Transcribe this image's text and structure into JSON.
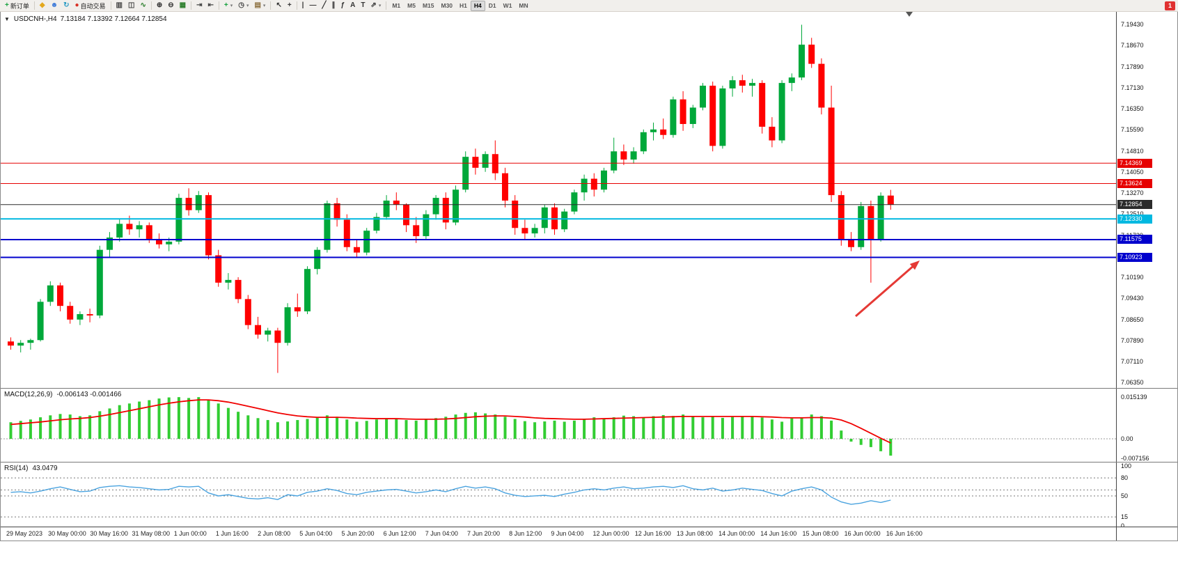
{
  "icons": {
    "collapse_triangle": "▼"
  },
  "toolbar": {
    "new_order_label": "新订单",
    "autotrading_label": "自动交易",
    "notification_badge": "1",
    "timeframes": [
      "M1",
      "M5",
      "M15",
      "M30",
      "H1",
      "H4",
      "D1",
      "W1",
      "MN"
    ],
    "active_timeframe": "H4",
    "groups": [
      {
        "items": [
          {
            "name": "new-order-button",
            "glyph": "+",
            "glyph_color": "#14a03c",
            "label": "新订单"
          }
        ]
      },
      {
        "items": [
          {
            "name": "alert-icon",
            "glyph": "◆",
            "glyph_color": "#e3a81e"
          },
          {
            "name": "market-watch-icon",
            "glyph": "☻",
            "glyph_color": "#3b78d8"
          },
          {
            "name": "refresh-icon",
            "glyph": "↻",
            "glyph_color": "#2a9bc4"
          },
          {
            "name": "autotrading-button",
            "glyph": "●",
            "glyph_color": "#d93025",
            "label": "自动交易"
          }
        ]
      },
      {
        "items": [
          {
            "name": "bar-chart-icon",
            "glyph": "▥",
            "glyph_color": "#444"
          },
          {
            "name": "candlestick-chart-icon",
            "glyph": "◫",
            "glyph_color": "#444"
          },
          {
            "name": "line-chart-icon",
            "glyph": "∿",
            "glyph_color": "#2a7d2a"
          }
        ]
      },
      {
        "items": [
          {
            "name": "zoom-in-icon",
            "glyph": "⊕",
            "glyph_color": "#333"
          },
          {
            "name": "zoom-out-icon",
            "glyph": "⊖",
            "glyph_color": "#333"
          },
          {
            "name": "tile-windows-icon",
            "glyph": "▦",
            "glyph_color": "#2a7d2a"
          }
        ]
      },
      {
        "items": [
          {
            "name": "auto-scroll-icon",
            "glyph": "⇥",
            "glyph_color": "#444"
          },
          {
            "name": "chart-shift-icon",
            "glyph": "⇤",
            "glyph_color": "#444"
          }
        ]
      },
      {
        "items": [
          {
            "name": "indicators-button",
            "glyph": "+",
            "glyph_color": "#14a03c",
            "caret": true
          },
          {
            "name": "periods-button",
            "glyph": "◷",
            "glyph_color": "#444",
            "caret": true
          },
          {
            "name": "templates-button",
            "glyph": "▤",
            "glyph_color": "#8a6d3b",
            "caret": true
          }
        ]
      },
      {
        "items": [
          {
            "name": "cursor-icon",
            "glyph": "↖",
            "glyph_color": "#333"
          },
          {
            "name": "crosshair-icon",
            "glyph": "+",
            "glyph_color": "#333"
          }
        ]
      },
      {
        "items": [
          {
            "name": "vertical-line-icon",
            "glyph": "|",
            "glyph_color": "#333"
          },
          {
            "name": "horizontal-line-icon",
            "glyph": "—",
            "glyph_color": "#333"
          },
          {
            "name": "trendline-icon",
            "glyph": "╱",
            "glyph_color": "#333"
          },
          {
            "name": "channel-icon",
            "glyph": "∥",
            "glyph_color": "#333"
          },
          {
            "name": "fibonacci-icon",
            "glyph": "ƒ",
            "glyph_color": "#333"
          },
          {
            "name": "text-tool-icon",
            "glyph": "A",
            "glyph_color": "#333"
          },
          {
            "name": "label-tool-icon",
            "glyph": "T",
            "glyph_color": "#333"
          },
          {
            "name": "arrows-tool-icon",
            "glyph": "⇗",
            "glyph_color": "#333",
            "caret": true
          }
        ]
      }
    ]
  },
  "chart_data": [
    {
      "type": "candlestick",
      "symbol": "USDCNH-",
      "timeframe": "H4",
      "title": "USDCNH-,H4",
      "ohlc_display": "7.13184 7.13392 7.12664 7.12854",
      "ylim": [
        7.0615,
        7.199
      ],
      "up_color": "#00a83a",
      "down_color": "#ff0000",
      "y_axis_labels": [
        "7.19430",
        "7.18670",
        "7.17890",
        "7.17130",
        "7.16350",
        "7.15590",
        "7.14810",
        "7.14050",
        "7.13270",
        "7.12510",
        "7.11730",
        "7.10950",
        "7.10190",
        "7.09430",
        "7.08650",
        "7.07890",
        "7.07110",
        "7.06350"
      ],
      "x_axis_labels": [
        "29 May 2023",
        "30 May 00:00",
        "30 May 16:00",
        "31 May 08:00",
        "1 Jun 00:00",
        "1 Jun 16:00",
        "2 Jun 08:00",
        "5 Jun 04:00",
        "5 Jun 20:00",
        "6 Jun 12:00",
        "7 Jun 04:00",
        "7 Jun 20:00",
        "8 Jun 12:00",
        "9 Jun 04:00",
        "12 Jun 00:00",
        "12 Jun 16:00",
        "13 Jun 08:00",
        "14 Jun 00:00",
        "14 Jun 16:00",
        "15 Jun 08:00",
        "16 Jun 00:00",
        "16 Jun 16:00"
      ],
      "candles": [
        [
          7.0785,
          7.08,
          7.0755,
          7.077
        ],
        [
          7.077,
          7.079,
          7.0745,
          7.078
        ],
        [
          7.078,
          7.0795,
          7.0755,
          7.079
        ],
        [
          7.079,
          7.094,
          7.0785,
          7.093
        ],
        [
          7.093,
          7.1005,
          7.0915,
          7.099
        ],
        [
          7.099,
          7.1,
          7.0895,
          7.0915
        ],
        [
          7.0915,
          7.093,
          7.085,
          7.0865
        ],
        [
          7.0865,
          7.0895,
          7.0845,
          7.0885
        ],
        [
          7.0885,
          7.0905,
          7.0855,
          7.088
        ],
        [
          7.088,
          7.1135,
          7.087,
          7.112
        ],
        [
          7.112,
          7.1185,
          7.1095,
          7.1165
        ],
        [
          7.1165,
          7.1235,
          7.115,
          7.1215
        ],
        [
          7.1215,
          7.1245,
          7.1175,
          7.1195
        ],
        [
          7.1195,
          7.1225,
          7.1165,
          7.121
        ],
        [
          7.121,
          7.122,
          7.1145,
          7.116
        ],
        [
          7.116,
          7.118,
          7.1125,
          7.114
        ],
        [
          7.114,
          7.1165,
          7.1115,
          7.115
        ],
        [
          7.115,
          7.1325,
          7.114,
          7.131
        ],
        [
          7.131,
          7.1345,
          7.1245,
          7.1265
        ],
        [
          7.1265,
          7.1335,
          7.1255,
          7.132
        ],
        [
          7.132,
          7.133,
          7.1085,
          7.11
        ],
        [
          7.11,
          7.112,
          7.0985,
          7.1
        ],
        [
          7.1,
          7.1035,
          7.0975,
          7.101
        ],
        [
          7.101,
          7.102,
          7.0925,
          7.094
        ],
        [
          7.094,
          7.0955,
          7.083,
          7.0845
        ],
        [
          7.0845,
          7.0875,
          7.0795,
          7.081
        ],
        [
          7.081,
          7.0835,
          7.0785,
          7.0825
        ],
        [
          7.0825,
          7.0835,
          7.067,
          7.078
        ],
        [
          7.078,
          7.0925,
          7.077,
          7.091
        ],
        [
          7.091,
          7.096,
          7.0875,
          7.0895
        ],
        [
          7.0895,
          7.106,
          7.0885,
          7.105
        ],
        [
          7.105,
          7.113,
          7.103,
          7.112
        ],
        [
          7.112,
          7.13,
          7.111,
          7.129
        ],
        [
          7.129,
          7.131,
          7.1205,
          7.123
        ],
        [
          7.123,
          7.125,
          7.1115,
          7.113
        ],
        [
          7.113,
          7.116,
          7.1095,
          7.111
        ],
        [
          7.111,
          7.12,
          7.11,
          7.119
        ],
        [
          7.119,
          7.1255,
          7.118,
          7.124
        ],
        [
          7.124,
          7.132,
          7.123,
          7.13
        ],
        [
          7.13,
          7.133,
          7.1265,
          7.1285
        ],
        [
          7.1285,
          7.129,
          7.1185,
          7.121
        ],
        [
          7.121,
          7.124,
          7.1145,
          7.117
        ],
        [
          7.117,
          7.1265,
          7.116,
          7.125
        ],
        [
          7.125,
          7.132,
          7.123,
          7.131
        ],
        [
          7.131,
          7.133,
          7.1195,
          7.122
        ],
        [
          7.122,
          7.1355,
          7.121,
          7.134
        ],
        [
          7.134,
          7.148,
          7.133,
          7.146
        ],
        [
          7.146,
          7.149,
          7.1395,
          7.142
        ],
        [
          7.142,
          7.148,
          7.1405,
          7.147
        ],
        [
          7.147,
          7.152,
          7.1375,
          7.14
        ],
        [
          7.14,
          7.142,
          7.1275,
          7.13
        ],
        [
          7.13,
          7.132,
          7.1175,
          7.12
        ],
        [
          7.12,
          7.123,
          7.1155,
          7.118
        ],
        [
          7.118,
          7.1215,
          7.1165,
          7.12
        ],
        [
          7.12,
          7.1285,
          7.118,
          7.1275
        ],
        [
          7.1275,
          7.129,
          7.1175,
          7.1195
        ],
        [
          7.1195,
          7.127,
          7.1185,
          7.126
        ],
        [
          7.126,
          7.134,
          7.125,
          7.133
        ],
        [
          7.133,
          7.1395,
          7.13,
          7.138
        ],
        [
          7.138,
          7.14,
          7.1315,
          7.134
        ],
        [
          7.134,
          7.142,
          7.133,
          7.141
        ],
        [
          7.141,
          7.153,
          7.14,
          7.148
        ],
        [
          7.148,
          7.1505,
          7.143,
          7.145
        ],
        [
          7.145,
          7.1495,
          7.1435,
          7.148
        ],
        [
          7.148,
          7.156,
          7.147,
          7.155
        ],
        [
          7.155,
          7.1585,
          7.152,
          7.156
        ],
        [
          7.156,
          7.16,
          7.1525,
          7.154
        ],
        [
          7.154,
          7.168,
          7.153,
          7.167
        ],
        [
          7.167,
          7.17,
          7.1555,
          7.158
        ],
        [
          7.158,
          7.165,
          7.1565,
          7.164
        ],
        [
          7.164,
          7.173,
          7.163,
          7.172
        ],
        [
          7.172,
          7.1735,
          7.148,
          7.15
        ],
        [
          7.15,
          7.172,
          7.149,
          7.171
        ],
        [
          7.171,
          7.1755,
          7.168,
          7.174
        ],
        [
          7.174,
          7.176,
          7.1695,
          7.172
        ],
        [
          7.172,
          7.1745,
          7.168,
          7.173
        ],
        [
          7.173,
          7.174,
          7.1545,
          7.157
        ],
        [
          7.157,
          7.1605,
          7.1495,
          7.152
        ],
        [
          7.152,
          7.174,
          7.151,
          7.173
        ],
        [
          7.173,
          7.1765,
          7.17,
          7.175
        ],
        [
          7.175,
          7.1943,
          7.174,
          7.187
        ],
        [
          7.187,
          7.1895,
          7.1785,
          7.18
        ],
        [
          7.18,
          7.182,
          7.1615,
          7.164
        ],
        [
          7.164,
          7.172,
          7.1295,
          7.132
        ],
        [
          7.132,
          7.1335,
          7.1135,
          7.116
        ],
        [
          7.116,
          7.1185,
          7.1115,
          7.113
        ],
        [
          7.113,
          7.1295,
          7.112,
          7.128
        ],
        [
          7.128,
          7.13,
          7.1,
          7.116
        ],
        [
          7.116,
          7.133,
          7.115,
          7.1318
        ],
        [
          7.13184,
          7.13392,
          7.12664,
          7.12854
        ]
      ],
      "horizontal_lines": [
        {
          "price": 7.14369,
          "label": "7.14369",
          "color": "#e60000",
          "width": 1
        },
        {
          "price": 7.13624,
          "label": "7.13624",
          "color": "#e60000",
          "width": 1
        },
        {
          "price": 7.12854,
          "label": "7.12854",
          "color": "#2b2b2b",
          "width": 1
        },
        {
          "price": 7.1233,
          "label": "7.12330",
          "color": "#00b8e0",
          "width": 2
        },
        {
          "price": 7.11575,
          "label": "7.11575",
          "color": "#0000cd",
          "width": 2
        },
        {
          "price": 7.10923,
          "label": "7.10923",
          "color": "#0000cd",
          "width": 2
        }
      ],
      "annotation_arrow": {
        "from": [
          1228,
          437
        ],
        "to": [
          1320,
          357
        ],
        "color": "#e53935"
      }
    },
    {
      "type": "bar",
      "name": "MACD(12,26,9)",
      "values_display": "-0.006143 -0.001466",
      "ylim": [
        -0.00833,
        0.01817
      ],
      "bar_color": "#32cd32",
      "signal_color": "#f00000",
      "y_axis_labels": [
        "0.015139",
        "0.00",
        "-0.007156"
      ],
      "y_axis_values": [
        0.015139,
        0,
        -0.007156
      ],
      "histogram": [
        0.006,
        0.0065,
        0.007,
        0.0078,
        0.0085,
        0.009,
        0.0088,
        0.0082,
        0.0085,
        0.01,
        0.011,
        0.0122,
        0.0128,
        0.0135,
        0.014,
        0.0146,
        0.015,
        0.0151,
        0.0148,
        0.0151,
        0.0142,
        0.0128,
        0.0112,
        0.0098,
        0.0085,
        0.0075,
        0.0068,
        0.006,
        0.0063,
        0.0068,
        0.0072,
        0.0078,
        0.0085,
        0.008,
        0.007,
        0.0062,
        0.0065,
        0.007,
        0.0075,
        0.0074,
        0.0068,
        0.0066,
        0.007,
        0.0075,
        0.008,
        0.0088,
        0.0094,
        0.0096,
        0.0092,
        0.0088,
        0.008,
        0.0072,
        0.0064,
        0.006,
        0.0063,
        0.0066,
        0.0062,
        0.0066,
        0.0072,
        0.0078,
        0.0074,
        0.0078,
        0.0084,
        0.0082,
        0.0078,
        0.0082,
        0.0086,
        0.0083,
        0.0088,
        0.0083,
        0.0078,
        0.0082,
        0.0076,
        0.0079,
        0.0083,
        0.008,
        0.0077,
        0.007,
        0.0062,
        0.0074,
        0.0078,
        0.0088,
        0.0082,
        0.0066,
        0.003,
        -0.001,
        -0.0022,
        -0.003,
        -0.0045,
        -0.0061
      ],
      "signal": [
        0.0052,
        0.0055,
        0.0058,
        0.0061,
        0.0065,
        0.0069,
        0.0072,
        0.0074,
        0.0077,
        0.0082,
        0.0088,
        0.0095,
        0.0102,
        0.0109,
        0.0116,
        0.0123,
        0.0129,
        0.0134,
        0.0138,
        0.0141,
        0.0141,
        0.0138,
        0.0133,
        0.0126,
        0.0118,
        0.011,
        0.0102,
        0.0094,
        0.0088,
        0.0083,
        0.008,
        0.0078,
        0.0078,
        0.0078,
        0.0077,
        0.0075,
        0.0074,
        0.0073,
        0.0073,
        0.0073,
        0.0072,
        0.0071,
        0.0071,
        0.0071,
        0.0072,
        0.0074,
        0.0077,
        0.008,
        0.0082,
        0.0083,
        0.0083,
        0.0081,
        0.0079,
        0.0076,
        0.0074,
        0.0073,
        0.0072,
        0.0071,
        0.0071,
        0.0072,
        0.0073,
        0.0074,
        0.0075,
        0.0076,
        0.0077,
        0.0078,
        0.0079,
        0.008,
        0.0081,
        0.0081,
        0.0081,
        0.0081,
        0.0081,
        0.0081,
        0.0081,
        0.0081,
        0.008,
        0.0079,
        0.0077,
        0.0076,
        0.0076,
        0.0077,
        0.0077,
        0.0075,
        0.0068,
        0.0055,
        0.0038,
        0.002,
        0.0002,
        -0.0015
      ]
    },
    {
      "type": "line",
      "name": "RSI(14)",
      "value_display": "43.0479",
      "ylim": [
        -1.2,
        105.8
      ],
      "line_color": "#4aa3df",
      "y_axis_labels": [
        "100",
        "80",
        "50",
        "15",
        "0"
      ],
      "y_axis_values": [
        100,
        80,
        50,
        15,
        0
      ],
      "levels": [
        80,
        60,
        50,
        15
      ],
      "values": [
        56,
        57,
        55,
        58,
        62,
        65,
        61,
        57,
        58,
        64,
        66,
        67,
        65,
        64,
        62,
        60,
        61,
        66,
        65,
        66,
        55,
        50,
        52,
        49,
        46,
        45,
        47,
        44,
        52,
        50,
        56,
        58,
        62,
        59,
        54,
        52,
        56,
        58,
        60,
        61,
        58,
        55,
        57,
        60,
        57,
        62,
        66,
        63,
        65,
        62,
        55,
        51,
        49,
        50,
        51,
        49,
        53,
        56,
        60,
        62,
        60,
        63,
        65,
        62,
        63,
        65,
        66,
        64,
        67,
        62,
        60,
        63,
        58,
        60,
        63,
        61,
        59,
        54,
        50,
        58,
        62,
        65,
        60,
        48,
        40,
        36,
        38,
        42,
        39,
        43
      ]
    }
  ]
}
